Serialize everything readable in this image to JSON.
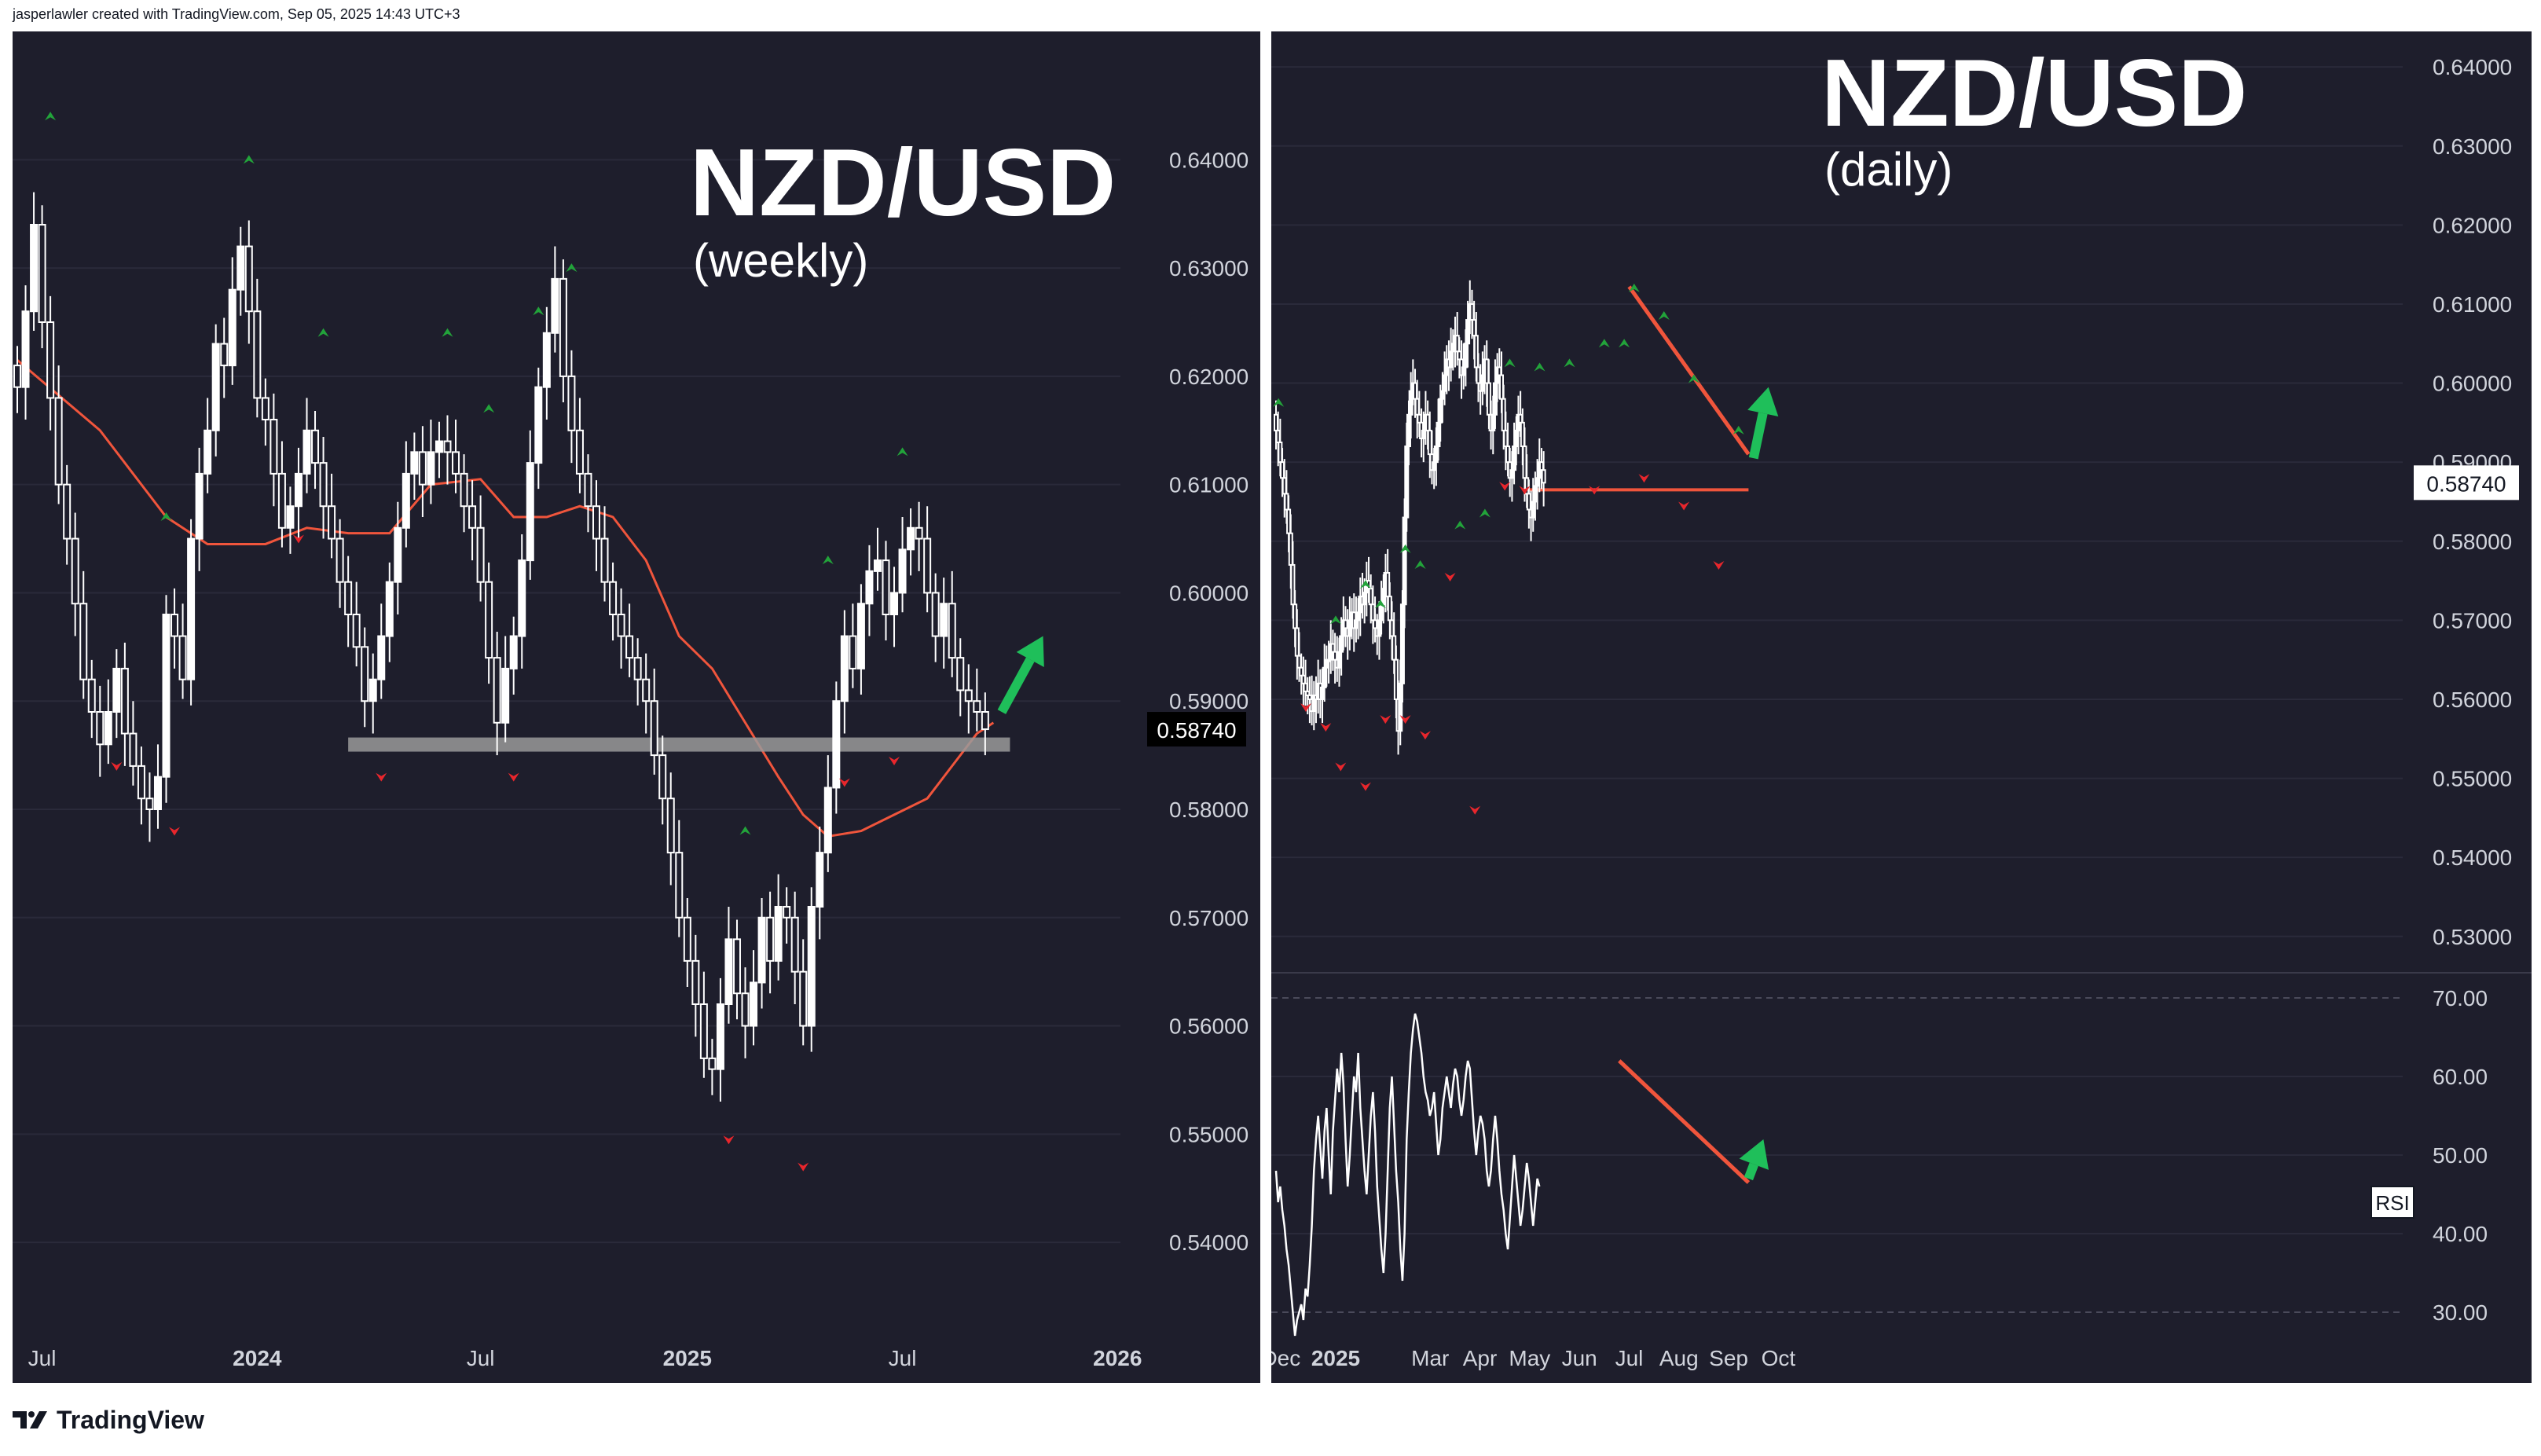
{
  "header": {
    "credit": "jasperlawler created with TradingView.com, Sep 05, 2025 14:43 UTC+3"
  },
  "footer": {
    "brand": "TradingView",
    "logo_icon": "tradingview-logo-icon"
  },
  "colors": {
    "background": "#1e1e2c",
    "candle": "#ffffff",
    "ma_line": "#f0553c",
    "trendline": "#f0553c",
    "arrow_up": "#1fbf5a",
    "fractal_up": "#22a33a",
    "fractal_down": "#e8262c",
    "support_band": "#9a9a9a",
    "grid": "#2a2a3a",
    "text": "#d1d4dc"
  },
  "chart_data": [
    {
      "type": "candlestick",
      "title": "NZD/USD",
      "subtitle": "(weekly)",
      "timeframe": "weekly",
      "price_label": "0.58740",
      "last_price": 0.5874,
      "ylim": [
        0.535,
        0.6475
      ],
      "y_ticks": [
        0.64,
        0.63,
        0.62,
        0.61,
        0.6,
        0.59,
        0.58,
        0.57,
        0.56,
        0.55,
        0.54
      ],
      "y_tick_labels": [
        "0.64000",
        "0.63000",
        "0.62000",
        "0.61000",
        "0.60000",
        "0.59000",
        "0.58000",
        "0.57000",
        "0.56000",
        "0.55000",
        "0.54000"
      ],
      "x_range": [
        0,
        140
      ],
      "x_ticks": [
        {
          "label": "Jul",
          "x": 3,
          "bold": false
        },
        {
          "label": "2024",
          "x": 29,
          "bold": true
        },
        {
          "label": "Jul",
          "x": 56,
          "bold": false
        },
        {
          "label": "2025",
          "x": 81,
          "bold": true
        },
        {
          "label": "Jul",
          "x": 107,
          "bold": false
        },
        {
          "label": "2026",
          "x": 133,
          "bold": true
        }
      ],
      "closes": [
        0.619,
        0.626,
        0.634,
        0.625,
        0.618,
        0.61,
        0.605,
        0.599,
        0.592,
        0.589,
        0.586,
        0.589,
        0.593,
        0.587,
        0.584,
        0.581,
        0.58,
        0.583,
        0.598,
        0.596,
        0.592,
        0.605,
        0.611,
        0.615,
        0.623,
        0.621,
        0.628,
        0.632,
        0.626,
        0.618,
        0.616,
        0.611,
        0.606,
        0.608,
        0.611,
        0.615,
        0.612,
        0.608,
        0.605,
        0.601,
        0.598,
        0.595,
        0.59,
        0.592,
        0.596,
        0.601,
        0.606,
        0.611,
        0.613,
        0.61,
        0.613,
        0.614,
        0.613,
        0.611,
        0.608,
        0.606,
        0.601,
        0.594,
        0.588,
        0.593,
        0.596,
        0.603,
        0.612,
        0.619,
        0.624,
        0.629,
        0.62,
        0.615,
        0.611,
        0.608,
        0.605,
        0.601,
        0.598,
        0.596,
        0.594,
        0.592,
        0.59,
        0.585,
        0.581,
        0.576,
        0.57,
        0.566,
        0.562,
        0.557,
        0.556,
        0.562,
        0.568,
        0.563,
        0.56,
        0.564,
        0.57,
        0.566,
        0.571,
        0.57,
        0.565,
        0.56,
        0.571,
        0.576,
        0.582,
        0.59,
        0.596,
        0.593,
        0.599,
        0.602,
        0.603,
        0.598,
        0.6,
        0.604,
        0.606,
        0.605,
        0.6,
        0.596,
        0.599,
        0.594,
        0.591,
        0.59,
        0.589,
        0.5874
      ],
      "ma_series": {
        "name": "",
        "x": [
          0,
          10,
          18,
          23,
          30,
          35,
          40,
          45,
          50,
          56,
          60,
          64,
          68,
          72,
          76,
          80,
          84,
          88,
          92,
          95,
          98,
          102,
          106,
          110,
          113,
          116,
          118
        ],
        "y": [
          0.6215,
          0.615,
          0.607,
          0.6045,
          0.6045,
          0.606,
          0.6055,
          0.6055,
          0.61,
          0.6105,
          0.607,
          0.607,
          0.608,
          0.607,
          0.603,
          0.596,
          0.593,
          0.588,
          0.583,
          0.5795,
          0.5775,
          0.578,
          0.5795,
          0.581,
          0.584,
          0.587,
          0.588
        ]
      },
      "support_band": {
        "low": 0.585,
        "high": 0.5862,
        "x_start": 40,
        "x_end": 120
      },
      "up_arrow": {
        "x_start": 119,
        "y_start": 0.589,
        "x_end": 124,
        "y_end": 0.596
      },
      "fractals_up": [
        {
          "x": 4,
          "y": 0.644
        },
        {
          "x": 28,
          "y": 0.64
        },
        {
          "x": 37,
          "y": 0.624
        },
        {
          "x": 52,
          "y": 0.624
        },
        {
          "x": 57,
          "y": 0.617
        },
        {
          "x": 63,
          "y": 0.626
        },
        {
          "x": 67,
          "y": 0.63
        },
        {
          "x": 88,
          "y": 0.578
        },
        {
          "x": 98,
          "y": 0.603
        },
        {
          "x": 107,
          "y": 0.613
        },
        {
          "x": 18,
          "y": 0.607
        }
      ],
      "fractals_down": [
        {
          "x": 12,
          "y": 0.584
        },
        {
          "x": 19,
          "y": 0.578
        },
        {
          "x": 34,
          "y": 0.605
        },
        {
          "x": 44,
          "y": 0.583
        },
        {
          "x": 60,
          "y": 0.583
        },
        {
          "x": 86,
          "y": 0.5495
        },
        {
          "x": 95,
          "y": 0.547
        },
        {
          "x": 100,
          "y": 0.5825
        },
        {
          "x": 106,
          "y": 0.5845
        }
      ]
    },
    {
      "type": "candlestick",
      "title": "NZD/USD",
      "subtitle": "(daily)",
      "timeframe": "daily",
      "price_label": "0.58740",
      "last_price": 0.5874,
      "ylim": [
        0.5262,
        0.6425
      ],
      "y_ticks": [
        0.64,
        0.63,
        0.62,
        0.61,
        0.6,
        0.59,
        0.58,
        0.57,
        0.56,
        0.55,
        0.54,
        0.53
      ],
      "y_tick_labels": [
        "0.64000",
        "0.63000",
        "0.62000",
        "0.61000",
        "0.60000",
        "0.59000",
        "0.58000",
        "0.57000",
        "0.56000",
        "0.55000",
        "0.54000",
        "0.53000"
      ],
      "x_range": [
        0,
        236
      ],
      "x_ticks": [
        {
          "label": "Dec",
          "x": 1,
          "bold": false
        },
        {
          "label": "2025",
          "x": 12,
          "bold": true
        },
        {
          "label": "Mar",
          "x": 31,
          "bold": false
        },
        {
          "label": "Apr",
          "x": 41,
          "bold": false
        },
        {
          "label": "May",
          "x": 51,
          "bold": false
        },
        {
          "label": "Jun",
          "x": 61,
          "bold": false
        },
        {
          "label": "Jul",
          "x": 71,
          "bold": false
        },
        {
          "label": "Aug",
          "x": 81,
          "bold": false
        },
        {
          "label": "Sep",
          "x": 91,
          "bold": false
        },
        {
          "label": "Oct",
          "x": 101,
          "bold": false
        }
      ],
      "closes_x_scale": 0.4237,
      "closes": [
        0.594,
        0.5925,
        0.59,
        0.588,
        0.586,
        0.584,
        0.581,
        0.577,
        0.572,
        0.569,
        0.5655,
        0.564,
        0.563,
        0.562,
        0.561,
        0.5605,
        0.56,
        0.5585,
        0.5605,
        0.56,
        0.562,
        0.56,
        0.5615,
        0.564,
        0.565,
        0.565,
        0.567,
        0.566,
        0.565,
        0.564,
        0.566,
        0.568,
        0.57,
        0.569,
        0.568,
        0.57,
        0.571,
        0.569,
        0.57,
        0.571,
        0.573,
        0.572,
        0.5735,
        0.575,
        0.574,
        0.572,
        0.57,
        0.569,
        0.568,
        0.57,
        0.572,
        0.574,
        0.576,
        0.573,
        0.57,
        0.568,
        0.565,
        0.56,
        0.556,
        0.562,
        0.572,
        0.583,
        0.592,
        0.596,
        0.599,
        0.6,
        0.598,
        0.596,
        0.595,
        0.593,
        0.594,
        0.596,
        0.594,
        0.591,
        0.589,
        0.59,
        0.592,
        0.595,
        0.598,
        0.599,
        0.601,
        0.603,
        0.602,
        0.604,
        0.605,
        0.606,
        0.604,
        0.603,
        0.601,
        0.602,
        0.605,
        0.608,
        0.61,
        0.608,
        0.606,
        0.602,
        0.6,
        0.599,
        0.601,
        0.603,
        0.6,
        0.596,
        0.594,
        0.596,
        0.6,
        0.602,
        0.601,
        0.598,
        0.594,
        0.592,
        0.59,
        0.588,
        0.589,
        0.592,
        0.594,
        0.596,
        0.595,
        0.592,
        0.588,
        0.586,
        0.584,
        0.583,
        0.585,
        0.587,
        0.588,
        0.59,
        0.589,
        0.5874
      ],
      "hline": {
        "y": 0.5865,
        "x_start": 51,
        "x_end": 95
      },
      "trendline": {
        "x_start": 71,
        "y_start": 0.6122,
        "x_end": 95,
        "y_end": 0.591
      },
      "up_arrow": {
        "x_start": 96,
        "y_start": 0.5905,
        "x_end": 99,
        "y_end": 0.5995
      },
      "fractals_up": [
        {
          "x": 0.5,
          "y": 0.5975
        },
        {
          "x": 12,
          "y": 0.57
        },
        {
          "x": 18,
          "y": 0.5745
        },
        {
          "x": 21,
          "y": 0.572
        },
        {
          "x": 26,
          "y": 0.579
        },
        {
          "x": 29,
          "y": 0.577
        },
        {
          "x": 37,
          "y": 0.582
        },
        {
          "x": 42,
          "y": 0.5835
        },
        {
          "x": 47,
          "y": 0.6025
        },
        {
          "x": 53,
          "y": 0.602
        },
        {
          "x": 59,
          "y": 0.6025
        },
        {
          "x": 66,
          "y": 0.605
        },
        {
          "x": 70,
          "y": 0.605
        },
        {
          "x": 72,
          "y": 0.612
        },
        {
          "x": 78,
          "y": 0.6085
        },
        {
          "x": 84,
          "y": 0.6005
        },
        {
          "x": 93,
          "y": 0.594
        }
      ],
      "fractals_down": [
        {
          "x": 6,
          "y": 0.559
        },
        {
          "x": 10,
          "y": 0.5565
        },
        {
          "x": 13,
          "y": 0.5515
        },
        {
          "x": 18,
          "y": 0.549
        },
        {
          "x": 22,
          "y": 0.5575
        },
        {
          "x": 26,
          "y": 0.5575
        },
        {
          "x": 30,
          "y": 0.5555
        },
        {
          "x": 35,
          "y": 0.5755
        },
        {
          "x": 40,
          "y": 0.546
        },
        {
          "x": 46,
          "y": 0.587
        },
        {
          "x": 50,
          "y": 0.5865
        },
        {
          "x": 64,
          "y": 0.5865
        },
        {
          "x": 74,
          "y": 0.588
        },
        {
          "x": 82,
          "y": 0.5845
        },
        {
          "x": 89,
          "y": 0.577
        }
      ]
    },
    {
      "type": "line",
      "title": "",
      "indicator_label": "RSI",
      "ylim": [
        27,
        72
      ],
      "y_ticks": [
        70,
        60,
        50,
        40,
        30
      ],
      "y_tick_labels": [
        "70.00",
        "60.00",
        "50.00",
        "40.00",
        "30.00"
      ],
      "dashed_levels": [
        70,
        30
      ],
      "x_range": [
        0,
        236
      ],
      "series": [
        {
          "name": "",
          "x_scale": 0.4237,
          "values": [
            48,
            44,
            46,
            43,
            41,
            38,
            36,
            33,
            30,
            27,
            29,
            30,
            31,
            29,
            33,
            32,
            36,
            41,
            48,
            52,
            55,
            51,
            47,
            53,
            56,
            50,
            45,
            53,
            57,
            61,
            58,
            63,
            59,
            52,
            46,
            50,
            55,
            60,
            58,
            63,
            56,
            52,
            48,
            45,
            50,
            55,
            58,
            53,
            46,
            42,
            38,
            35,
            40,
            48,
            56,
            60,
            54,
            48,
            44,
            38,
            34,
            40,
            52,
            58,
            63,
            66,
            68,
            67,
            65,
            63,
            60,
            58,
            57,
            55,
            56,
            58,
            54,
            50,
            52,
            56,
            58,
            60,
            58,
            56,
            59,
            61,
            60,
            57,
            55,
            57,
            60,
            62,
            61,
            57,
            53,
            50,
            53,
            55,
            54,
            52,
            48,
            46,
            48,
            52,
            55,
            52,
            48,
            45,
            43,
            40,
            38,
            42,
            46,
            50,
            47,
            44,
            41,
            43,
            46,
            49,
            47,
            44,
            41,
            44,
            47,
            46
          ]
        }
      ],
      "trendline": {
        "x_start": 69,
        "y_start": 62,
        "x_end": 95,
        "y_end": 46.5
      },
      "up_arrow": {
        "x_start": 95,
        "y_start": 47,
        "x_end": 98,
        "y_end": 52
      }
    }
  ]
}
